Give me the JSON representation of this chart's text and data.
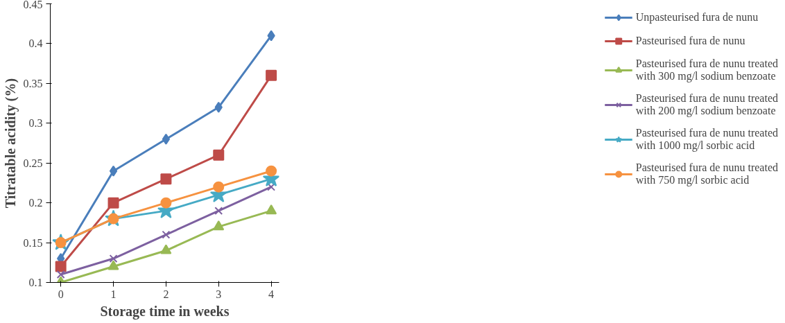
{
  "chart_data": {
    "type": "line",
    "xlabel": "Storage time in weeks",
    "ylabel": "Titratable acidity (%)",
    "x": [
      0,
      1,
      2,
      3,
      4
    ],
    "xlim": [
      -0.2,
      4.15
    ],
    "xticks": [
      0,
      1,
      2,
      3,
      4
    ],
    "ylim": [
      0.1,
      0.45
    ],
    "yticks": [
      0.1,
      0.15,
      0.2,
      0.25,
      0.3,
      0.35,
      0.4,
      0.45
    ],
    "grid": false,
    "legend": "right",
    "series": [
      {
        "name": "Unpasteurised fura de nunu",
        "color": "#4a7ebb",
        "marker": "diamond",
        "values": [
          0.13,
          0.24,
          0.28,
          0.32,
          0.41
        ]
      },
      {
        "name": "Pasteurised fura de nunu",
        "color": "#be4b48",
        "marker": "square",
        "values": [
          0.12,
          0.2,
          0.23,
          0.26,
          0.36
        ]
      },
      {
        "name": "Pasteurised fura de nunu treated with 300 mg/l sodium benzoate",
        "color": "#98b954",
        "marker": "triangle",
        "values": [
          0.1,
          0.12,
          0.14,
          0.17,
          0.19
        ]
      },
      {
        "name": "Pasteurised fura de nunu treated with 200 mg/l sodium benzoate",
        "color": "#7d60a0",
        "marker": "cross",
        "values": [
          0.11,
          0.13,
          0.16,
          0.19,
          0.22
        ]
      },
      {
        "name": "Pasteurised fura de nunu treated with 1000 mg/l sorbic acid",
        "color": "#46aac5",
        "marker": "star",
        "values": [
          0.15,
          0.18,
          0.19,
          0.21,
          0.23
        ]
      },
      {
        "name": "Pasteurised fura de nunu treated with 750 mg/l sorbic acid",
        "color": "#f69240",
        "marker": "circle",
        "values": [
          0.15,
          0.18,
          0.2,
          0.22,
          0.24
        ]
      }
    ]
  }
}
